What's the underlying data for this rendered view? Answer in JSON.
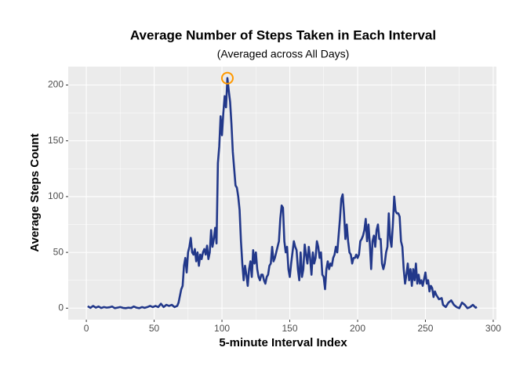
{
  "chart_data": {
    "type": "line",
    "title": "Average Number of Steps Taken in Each Interval",
    "subtitle": "(Averaged across All Days)",
    "x_label": "5-minute Interval Index",
    "y_label": "Average Steps Count",
    "color": "#22388a",
    "x": [
      1,
      3,
      5,
      7,
      9,
      11,
      13,
      15,
      17,
      19,
      21,
      23,
      25,
      27,
      29,
      31,
      33,
      35,
      37,
      39,
      41,
      43,
      45,
      47,
      49,
      51,
      53,
      55,
      57,
      59,
      61,
      63,
      65,
      67,
      68,
      70,
      71,
      72,
      73,
      74,
      75,
      76,
      77,
      78,
      79,
      80,
      81,
      82,
      83,
      84,
      85,
      86,
      87,
      88,
      89,
      90,
      91,
      92,
      93,
      94,
      95,
      96,
      97,
      98,
      99,
      100,
      101,
      102,
      103,
      104,
      105,
      106,
      107,
      108,
      109,
      110,
      111,
      112,
      113,
      114,
      115,
      116,
      117,
      118,
      119,
      120,
      121,
      122,
      123,
      124,
      125,
      126,
      127,
      128,
      129,
      130,
      131,
      132,
      133,
      134,
      135,
      136,
      137,
      138,
      139,
      140,
      141,
      142,
      143,
      144,
      145,
      146,
      147,
      148,
      149,
      150,
      151,
      152,
      153,
      154,
      155,
      156,
      157,
      158,
      159,
      160,
      161,
      162,
      163,
      164,
      165,
      166,
      167,
      168,
      169,
      170,
      171,
      172,
      173,
      174,
      175,
      176,
      177,
      178,
      179,
      180,
      181,
      182,
      183,
      184,
      185,
      186,
      187,
      188,
      189,
      190,
      191,
      192,
      193,
      194,
      195,
      196,
      197,
      198,
      199,
      200,
      201,
      202,
      203,
      204,
      205,
      206,
      207,
      208,
      209,
      210,
      211,
      212,
      213,
      214,
      215,
      216,
      217,
      218,
      219,
      220,
      221,
      222,
      223,
      224,
      225,
      226,
      227,
      228,
      229,
      230,
      231,
      232,
      233,
      234,
      235,
      236,
      237,
      238,
      239,
      240,
      241,
      242,
      243,
      244,
      245,
      246,
      247,
      248,
      250,
      251,
      252,
      253,
      254,
      255,
      256,
      257,
      258,
      260,
      262,
      263,
      265,
      267,
      269,
      271,
      273,
      275,
      277,
      279,
      281,
      283,
      285,
      287,
      288
    ],
    "values": [
      1.7,
      0.3,
      2,
      0.5,
      1.5,
      0.2,
      1,
      0.5,
      0.8,
      1.5,
      0,
      0.5,
      1,
      0.3,
      0,
      0.5,
      0.2,
      1.5,
      0.5,
      0,
      1,
      0.3,
      1,
      2,
      1,
      2,
      1,
      4,
      1,
      3,
      2,
      3,
      1,
      2,
      5,
      17,
      20,
      38,
      45,
      32,
      50,
      55,
      63,
      50,
      48,
      53,
      42,
      50,
      38,
      48,
      44,
      50,
      53,
      48,
      56,
      44,
      50,
      70,
      55,
      62,
      72,
      58,
      130,
      145,
      172,
      155,
      175,
      190,
      180,
      206.17,
      195,
      185,
      165,
      140,
      125,
      110,
      108,
      100,
      88,
      60,
      40,
      25,
      38,
      30,
      20,
      35,
      42,
      28,
      52,
      40,
      50,
      35,
      28,
      25,
      30,
      30,
      25,
      22,
      28,
      30,
      38,
      40,
      55,
      42,
      45,
      50,
      55,
      60,
      80,
      92,
      90,
      60,
      50,
      55,
      35,
      28,
      40,
      50,
      60,
      55,
      52,
      35,
      25,
      50,
      28,
      35,
      57,
      48,
      40,
      55,
      45,
      30,
      50,
      40,
      45,
      60,
      55,
      45,
      50,
      30,
      28,
      17,
      35,
      42,
      35,
      40,
      38,
      45,
      48,
      55,
      50,
      65,
      80,
      98,
      102,
      85,
      62,
      75,
      60,
      50,
      48,
      40,
      45,
      45,
      48,
      45,
      48,
      60,
      62,
      65,
      70,
      80,
      60,
      75,
      58,
      35,
      60,
      65,
      55,
      70,
      75,
      62,
      62,
      40,
      35,
      40,
      50,
      55,
      85,
      62,
      55,
      75,
      100,
      87,
      85,
      85,
      82,
      60,
      55,
      35,
      22,
      30,
      40,
      25,
      35,
      20,
      35,
      25,
      40,
      22,
      30,
      22,
      25,
      20,
      32,
      22,
      25,
      15,
      20,
      18,
      10,
      15,
      12,
      8,
      9,
      3,
      1,
      5,
      7,
      3,
      1,
      0,
      5,
      3,
      0,
      1,
      3,
      0.5,
      1
    ],
    "highlight": {
      "x": 104,
      "y": 206.17,
      "color": "#ff9900"
    },
    "xlim": [
      -13.35,
      302.35
    ],
    "xticks": [
      0,
      50,
      100,
      150,
      200,
      250,
      300
    ],
    "ylim": [
      -10.3,
      216.5
    ],
    "yticks": [
      0,
      50,
      100,
      150,
      200
    ],
    "grid": true
  }
}
